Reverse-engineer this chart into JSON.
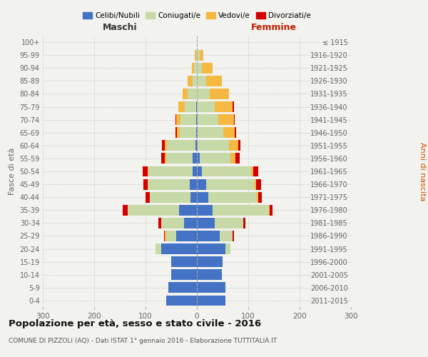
{
  "age_groups": [
    "0-4",
    "5-9",
    "10-14",
    "15-19",
    "20-24",
    "25-29",
    "30-34",
    "35-39",
    "40-44",
    "45-49",
    "50-54",
    "55-59",
    "60-64",
    "65-69",
    "70-74",
    "75-79",
    "80-84",
    "85-89",
    "90-94",
    "95-99",
    "100+"
  ],
  "birth_years": [
    "2011-2015",
    "2006-2010",
    "2001-2005",
    "1996-2000",
    "1991-1995",
    "1986-1990",
    "1981-1985",
    "1976-1980",
    "1971-1975",
    "1966-1970",
    "1961-1965",
    "1956-1960",
    "1951-1955",
    "1946-1950",
    "1941-1945",
    "1936-1940",
    "1931-1935",
    "1926-1930",
    "1921-1925",
    "1916-1920",
    "≤ 1915"
  ],
  "male": {
    "celibi": [
      60,
      55,
      50,
      50,
      70,
      40,
      25,
      35,
      12,
      14,
      9,
      8,
      3,
      2,
      2,
      2,
      0,
      0,
      0,
      0,
      0
    ],
    "coniugati": [
      0,
      0,
      0,
      0,
      10,
      20,
      45,
      100,
      80,
      80,
      85,
      52,
      55,
      32,
      30,
      22,
      18,
      8,
      5,
      2,
      0
    ],
    "vedovi": [
      0,
      0,
      0,
      0,
      0,
      2,
      0,
      0,
      0,
      2,
      2,
      2,
      5,
      5,
      8,
      12,
      10,
      10,
      5,
      2,
      0
    ],
    "divorziati": [
      0,
      0,
      0,
      0,
      0,
      2,
      5,
      10,
      8,
      8,
      10,
      8,
      5,
      2,
      2,
      0,
      0,
      0,
      0,
      0,
      0
    ]
  },
  "female": {
    "nubili": [
      55,
      55,
      48,
      50,
      55,
      45,
      35,
      30,
      22,
      18,
      10,
      5,
      2,
      2,
      2,
      0,
      0,
      0,
      0,
      0,
      0
    ],
    "coniugate": [
      0,
      0,
      0,
      0,
      10,
      25,
      55,
      110,
      95,
      95,
      95,
      60,
      60,
      50,
      40,
      35,
      25,
      18,
      10,
      5,
      0
    ],
    "vedove": [
      0,
      0,
      0,
      0,
      0,
      0,
      0,
      2,
      2,
      2,
      5,
      10,
      18,
      22,
      30,
      35,
      38,
      30,
      20,
      8,
      0
    ],
    "divorziate": [
      0,
      0,
      0,
      0,
      0,
      2,
      5,
      5,
      8,
      10,
      10,
      8,
      5,
      2,
      2,
      2,
      0,
      0,
      0,
      0,
      0
    ]
  },
  "colors": {
    "celibi_nubili": "#4472c4",
    "coniugati": "#c8d9a8",
    "vedovi": "#f5b942",
    "divorziati": "#d40000"
  },
  "xlim": 300,
  "title": "Popolazione per età, sesso e stato civile - 2016",
  "subtitle": "COMUNE DI PIZZOLI (AQ) - Dati ISTAT 1° gennaio 2016 - Elaborazione TUTTITALIA.IT",
  "ylabel_left": "Fasce di età",
  "ylabel_right": "Anni di nascita",
  "xlabel_left": "Maschi",
  "xlabel_right": "Femmine",
  "bg_color": "#f2f2ee",
  "grid_color": "#cccccc"
}
